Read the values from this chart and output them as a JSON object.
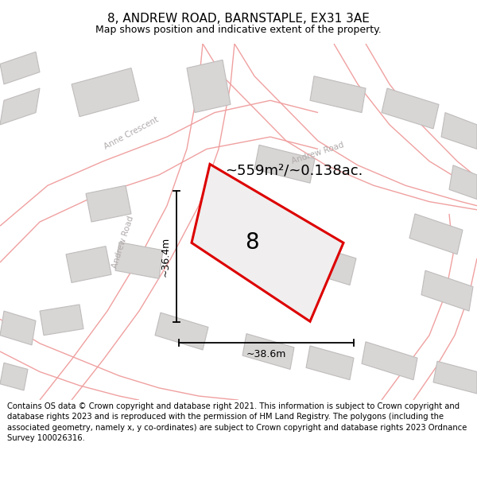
{
  "title": "8, ANDREW ROAD, BARNSTAPLE, EX31 3AE",
  "subtitle": "Map shows position and indicative extent of the property.",
  "footer": "Contains OS data © Crown copyright and database right 2021. This information is subject to Crown copyright and database rights 2023 and is reproduced with the permission of HM Land Registry. The polygons (including the associated geometry, namely x, y co-ordinates) are subject to Crown copyright and database rights 2023 Ordnance Survey 100026316.",
  "area_text": "~559m²/~0.138ac.",
  "width_text": "~38.6m",
  "height_text": "~36.4m",
  "parcel_number": "8",
  "bg_color": "#ebebeb",
  "road_outline_color": "#f0a0a0",
  "building_fill": "#d8d5d5",
  "building_outline": "#c0bcbc",
  "highlight_color": "#dd0000",
  "road_label_color": "#b0aaaa",
  "title_fontsize": 11,
  "subtitle_fontsize": 9,
  "footer_fontsize": 7.2,
  "area_fontsize": 13,
  "parcel_fontsize": 20,
  "dim_fontsize": 9
}
